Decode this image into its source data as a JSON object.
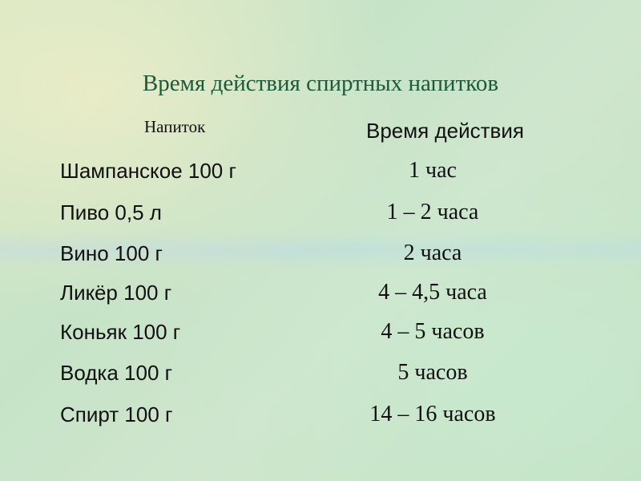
{
  "title": "Время действия спиртных напитков",
  "table": {
    "headers": [
      "Напиток",
      "Время действия"
    ],
    "rows": [
      {
        "drink": "Шампанское 100 г",
        "time": "1 час"
      },
      {
        "drink": "Пиво 0,5 л",
        "time": "1 – 2 часа"
      },
      {
        "drink": "Вино 100 г",
        "time": "2 часа"
      },
      {
        "drink": "Ликёр 100 г",
        "time": "4 – 4,5 часа"
      },
      {
        "drink": "Коньяк 100 г",
        "time": "4 – 5 часов"
      },
      {
        "drink": "Водка 100 г",
        "time": "5 часов"
      },
      {
        "drink": "Спирт 100 г",
        "time": "14 – 16 часов"
      }
    ]
  },
  "colors": {
    "title": "#1d5a3a",
    "background": "#c6e3c8"
  }
}
